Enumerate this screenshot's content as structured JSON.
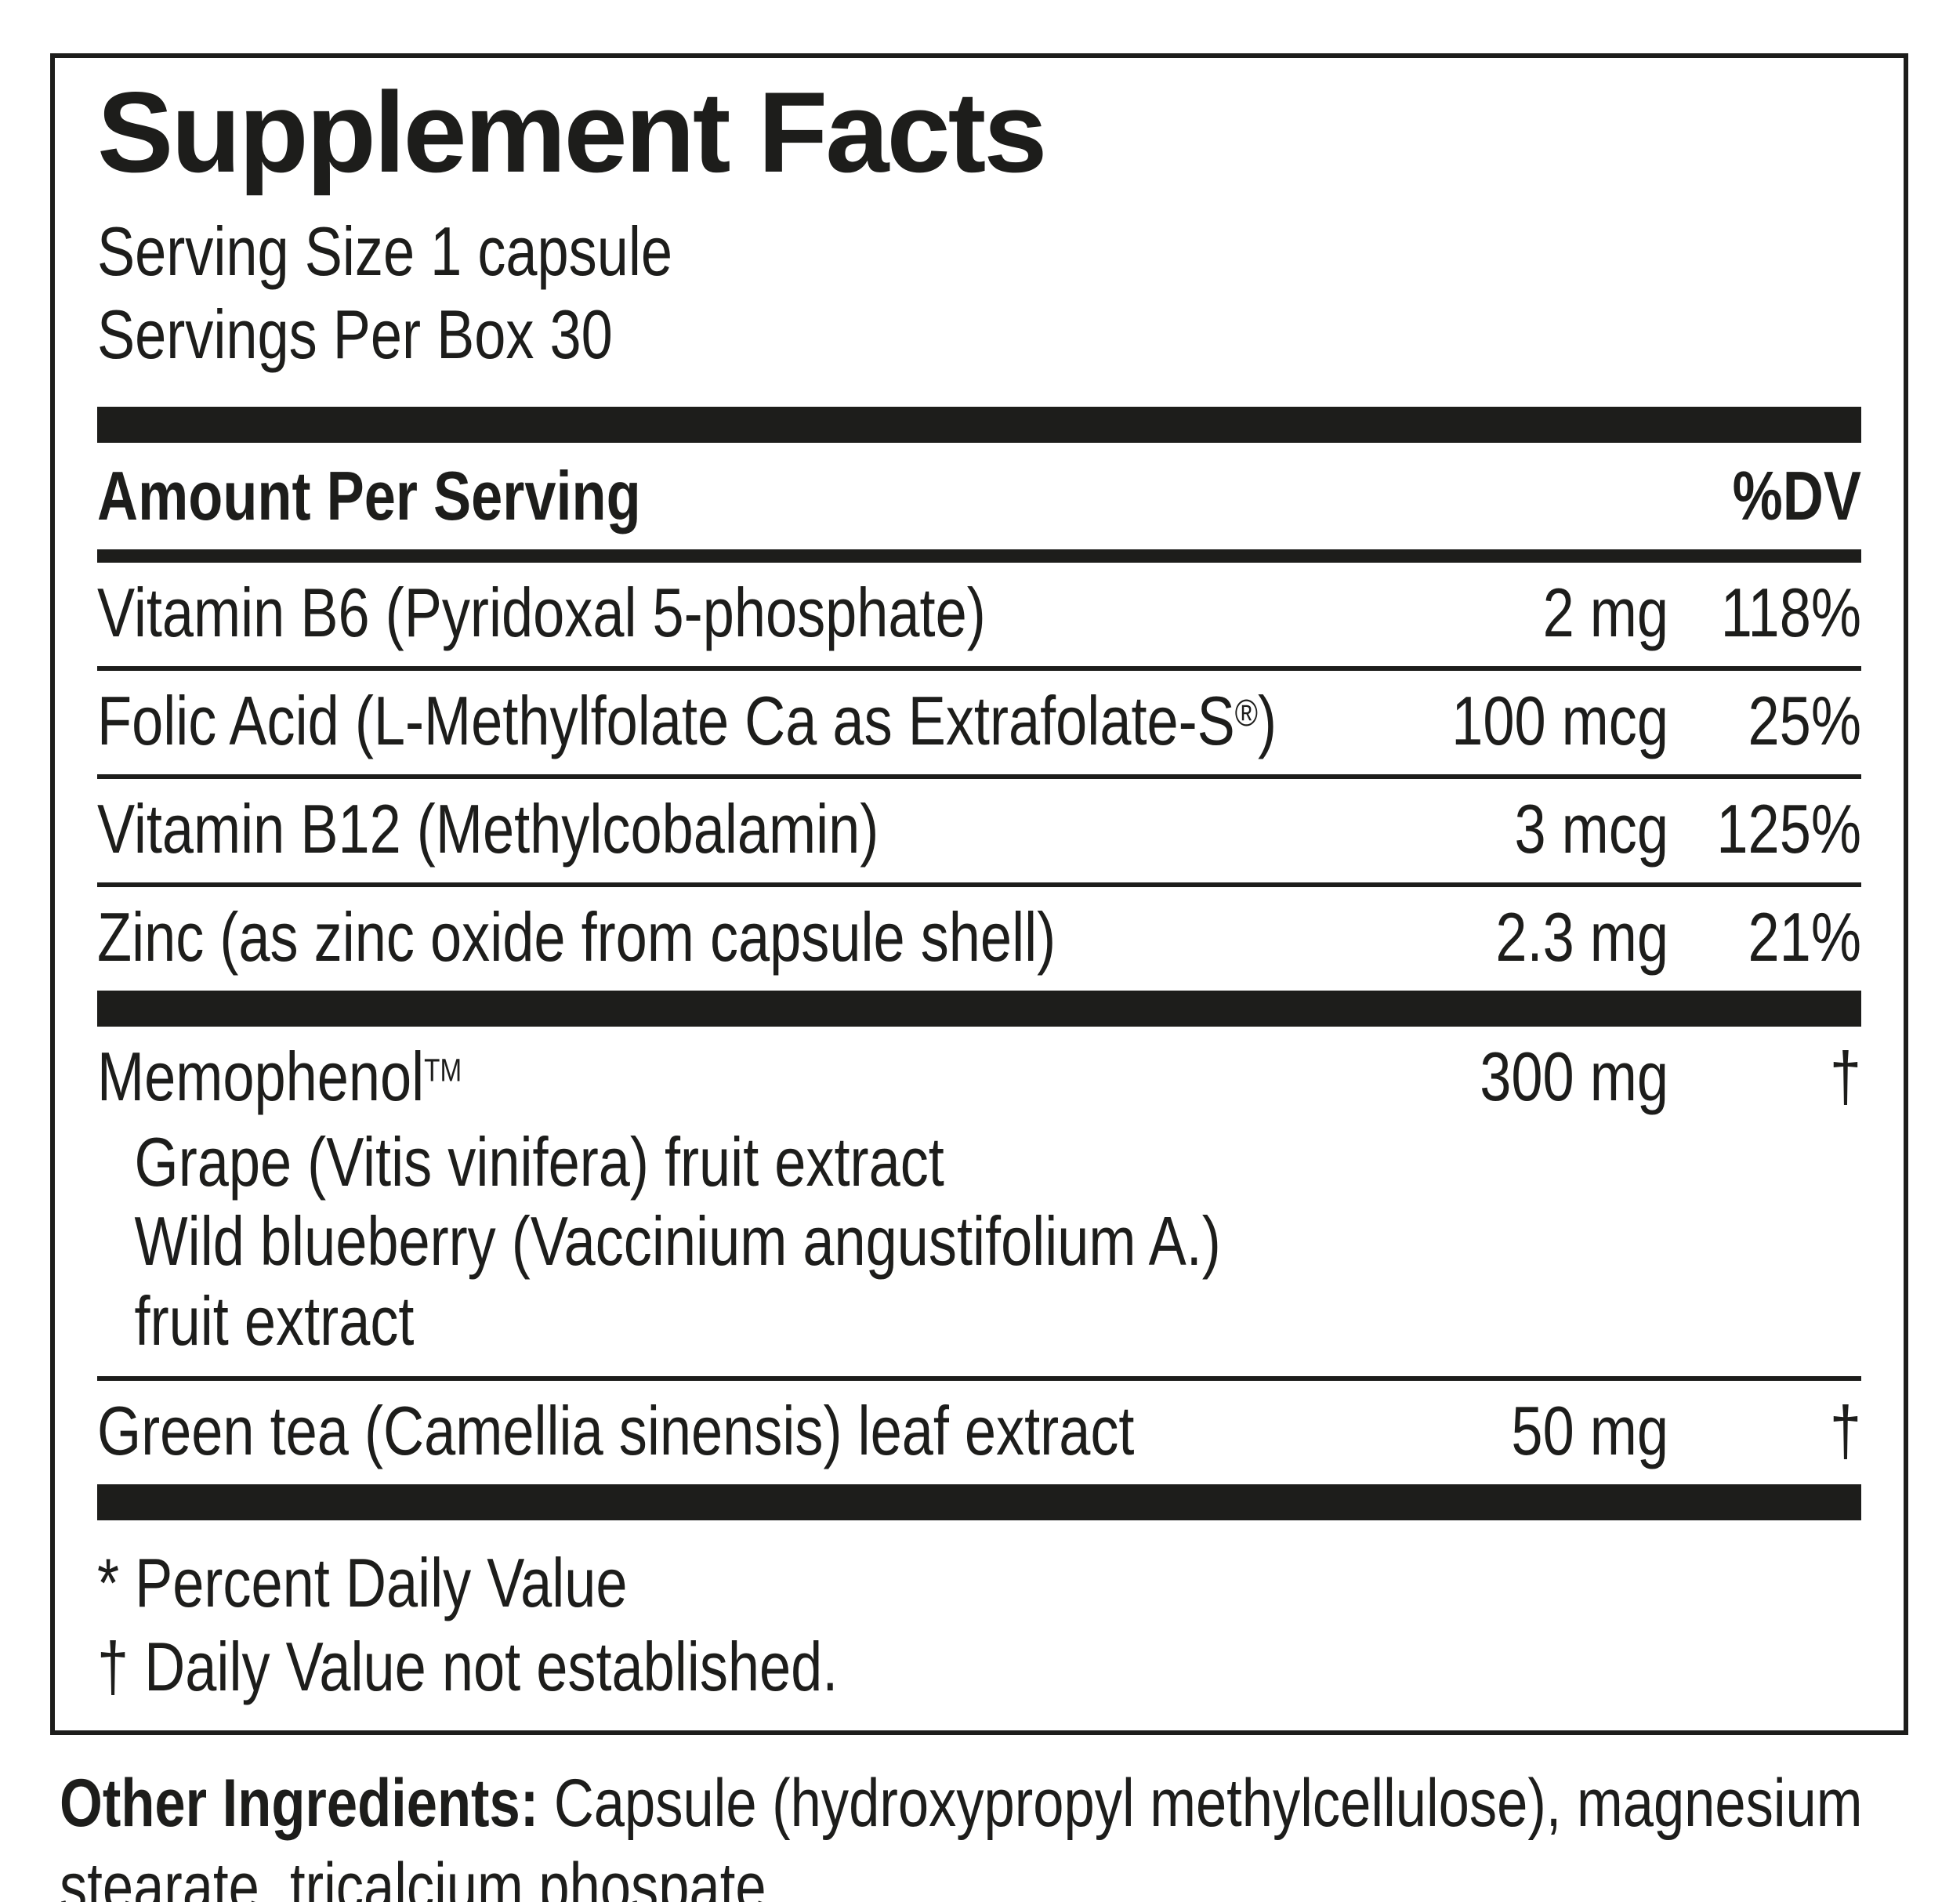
{
  "panel": {
    "title": "Supplement Facts",
    "serving_size": "Serving Size 1 capsule",
    "servings_per": "Servings Per Box 30",
    "header": {
      "amount_label": "Amount Per Serving",
      "dv_label": "%DV"
    },
    "rows": [
      {
        "name": "Vitamin B6 (Pyridoxal 5-phosphate)",
        "amount": "2 mg",
        "dv": "118%"
      },
      {
        "name_pre": "Folic Acid (L-Methylfolate Ca as Extrafolate-S",
        "reg_mark": "®",
        "name_post": ")",
        "amount": "100 mcg",
        "dv": "25%"
      },
      {
        "name": "Vitamin B12 (Methylcobalamin)",
        "amount": "3 mcg",
        "dv": "125%"
      },
      {
        "name": "Zinc (as zinc oxide from capsule shell)",
        "amount": "2.3 mg",
        "dv": "21%"
      }
    ],
    "blend": {
      "name": "Memophenol",
      "trademark": "TM",
      "amount": "300 mg",
      "dv": "†",
      "components": [
        "Grape (Vitis vinifera) fruit extract",
        "Wild blueberry (Vaccinium angustifolium A.)",
        "fruit extract"
      ]
    },
    "extra_row": {
      "name": "Green tea (Camellia sinensis) leaf extract",
      "amount": "50 mg",
      "dv": "†"
    },
    "footnotes": [
      "* Percent Daily Value",
      "† Daily Value not established."
    ]
  },
  "footer": {
    "bold_label": "Other Ingredients:",
    "text": " Capsule (hydroxypropyl methylcellulose), magnesium stearate, tricalcium phospate."
  },
  "colors": {
    "ink": "#1d1d1b",
    "background": "#ffffff"
  }
}
